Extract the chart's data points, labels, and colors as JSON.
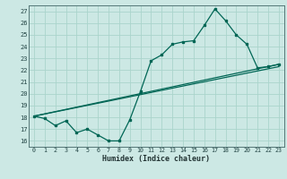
{
  "xlabel": "Humidex (Indice chaleur)",
  "background_color": "#cce8e4",
  "grid_color": "#aad4cc",
  "line_color": "#006655",
  "spine_color": "#557777",
  "xlim": [
    -0.5,
    23.5
  ],
  "ylim": [
    15.5,
    27.5
  ],
  "xticks": [
    0,
    1,
    2,
    3,
    4,
    5,
    6,
    7,
    8,
    9,
    10,
    11,
    12,
    13,
    14,
    15,
    16,
    17,
    18,
    19,
    20,
    21,
    22,
    23
  ],
  "yticks": [
    16,
    17,
    18,
    19,
    20,
    21,
    22,
    23,
    24,
    25,
    26,
    27
  ],
  "line1_x": [
    0,
    1,
    2,
    3,
    4,
    5,
    6,
    7,
    8,
    9,
    10,
    11,
    12,
    13,
    14,
    15,
    16,
    17,
    18,
    19,
    20,
    21,
    22,
    23
  ],
  "line1_y": [
    18.1,
    17.9,
    17.3,
    17.7,
    16.7,
    17.0,
    16.5,
    16.0,
    16.0,
    17.8,
    20.2,
    22.8,
    23.3,
    24.2,
    24.4,
    24.5,
    25.8,
    27.2,
    26.2,
    25.0,
    24.2,
    22.2,
    22.3,
    22.5
  ],
  "line2_x": [
    0,
    23
  ],
  "line2_y": [
    18.1,
    22.3
  ],
  "line3_x": [
    0,
    23
  ],
  "line3_y": [
    18.1,
    22.5
  ]
}
